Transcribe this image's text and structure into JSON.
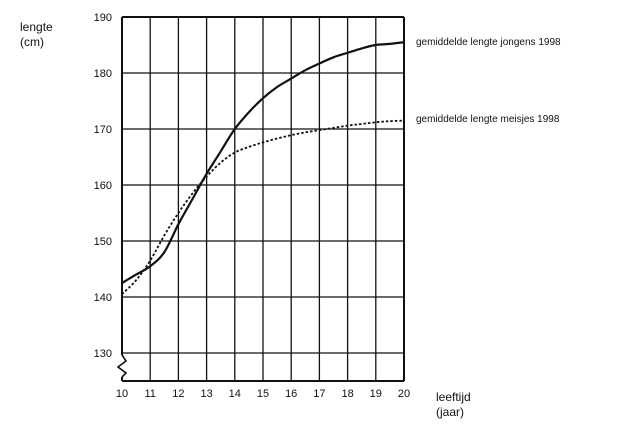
{
  "chart_data": {
    "type": "line",
    "ylabel_lines": [
      "lengte",
      "(cm)"
    ],
    "xlabel_lines": [
      "leeftijd",
      "(jaar)"
    ],
    "xlim": [
      10,
      20
    ],
    "ylim": [
      125,
      190
    ],
    "x_ticks": [
      10,
      11,
      12,
      13,
      14,
      15,
      16,
      17,
      18,
      19,
      20
    ],
    "y_ticks": [
      130,
      140,
      150,
      160,
      170,
      180,
      190
    ],
    "y_axis_break": true,
    "grid": true,
    "legend": "inline-right",
    "series": [
      {
        "name": "gemiddelde lengte jongens 1998",
        "style": "solid",
        "x": [
          10,
          10.5,
          11,
          11.5,
          12,
          12.5,
          13,
          13.5,
          14,
          14.5,
          15,
          15.5,
          16,
          16.5,
          17,
          17.5,
          18,
          18.5,
          19,
          19.5,
          20
        ],
        "y": [
          142.5,
          144,
          145.5,
          148,
          153,
          157.5,
          162,
          166,
          170,
          173,
          175.5,
          177.5,
          179,
          180.5,
          181.7,
          182.8,
          183.6,
          184.4,
          185,
          185.2,
          185.5
        ]
      },
      {
        "name": "gemiddelde lengte meisjes 1998",
        "style": "dotted",
        "x": [
          10,
          10.5,
          11,
          11.5,
          12,
          12.5,
          13,
          13.5,
          14,
          14.5,
          15,
          15.5,
          16,
          16.5,
          17,
          17.5,
          18,
          18.5,
          19,
          19.5,
          20
        ],
        "y": [
          140.5,
          143,
          146.5,
          151,
          155,
          158.5,
          161.5,
          164,
          165.8,
          166.8,
          167.6,
          168.3,
          168.9,
          169.4,
          169.8,
          170.2,
          170.6,
          170.9,
          171.2,
          171.4,
          171.5
        ]
      }
    ]
  }
}
